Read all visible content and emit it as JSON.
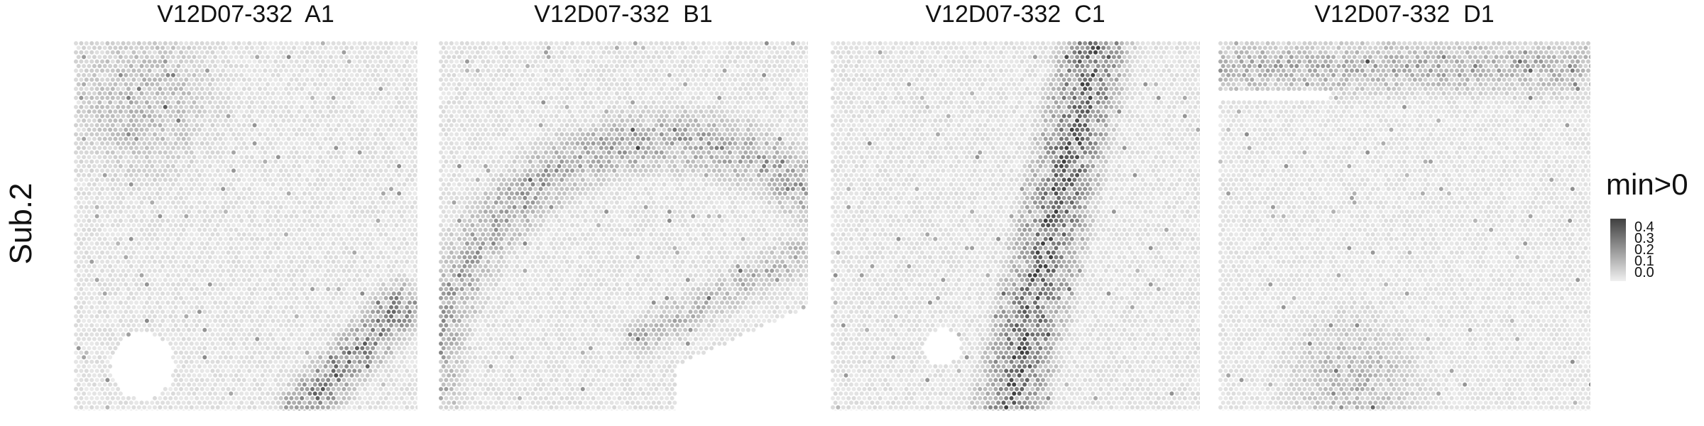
{
  "chart_data": {
    "type": "heatmap",
    "subtype": "spatial-hexagonal-spot-map",
    "row_label": "Sub.2",
    "legend": {
      "title": "min>0",
      "ticks": [
        "0.4",
        "0.3",
        "0.2",
        "0.1",
        "0.0"
      ],
      "tick_values": [
        0.4,
        0.3,
        0.2,
        0.1,
        0.0
      ],
      "color_low": "#f0f0f0",
      "color_high": "#404040",
      "range": [
        0.0,
        0.45
      ]
    },
    "panels": [
      {
        "title": "V12D07-332  A1",
        "baseline": 0.04,
        "high_regions": [
          {
            "shape": "band",
            "from": [
              0.95,
              0.72
            ],
            "to": [
              0.66,
              1.0
            ],
            "width": 0.09,
            "level": 0.26
          },
          {
            "shape": "blob",
            "center": [
              0.2,
              0.16
            ],
            "radius": 0.28,
            "level": 0.12
          }
        ],
        "empty_regions": [
          {
            "center": [
              0.2,
              0.88
            ],
            "radius": 0.09
          }
        ]
      },
      {
        "title": "V12D07-332  B1",
        "baseline": 0.04,
        "high_regions": [
          {
            "shape": "ring",
            "center": [
              0.62,
              0.98
            ],
            "radius": 0.64,
            "width": 0.1,
            "level": 0.17
          },
          {
            "shape": "band",
            "from": [
              0.97,
              0.58
            ],
            "to": [
              0.55,
              0.8
            ],
            "width": 0.07,
            "level": 0.12
          }
        ],
        "empty_regions": [
          {
            "shape": "corner-cut",
            "corner": "bottom-right",
            "start": 0.64
          }
        ]
      },
      {
        "title": "V12D07-332  C1",
        "baseline": 0.04,
        "high_regions": [
          {
            "shape": "band",
            "from": [
              0.72,
              0.0
            ],
            "to": [
              0.48,
              1.0
            ],
            "width": 0.12,
            "level": 0.32
          }
        ],
        "empty_regions": [
          {
            "center": [
              0.3,
              0.83
            ],
            "radius": 0.05
          }
        ]
      },
      {
        "title": "V12D07-332  D1",
        "baseline": 0.035,
        "high_regions": [
          {
            "shape": "strip",
            "y": 0.07,
            "height": 0.1,
            "level": 0.15
          },
          {
            "shape": "blob",
            "center": [
              0.36,
              0.92
            ],
            "radius": 0.24,
            "level": 0.13
          }
        ],
        "empty_regions": [
          {
            "shape": "strip-gap",
            "y": 0.15,
            "x": [
              0.0,
              0.3
            ]
          }
        ]
      }
    ]
  }
}
